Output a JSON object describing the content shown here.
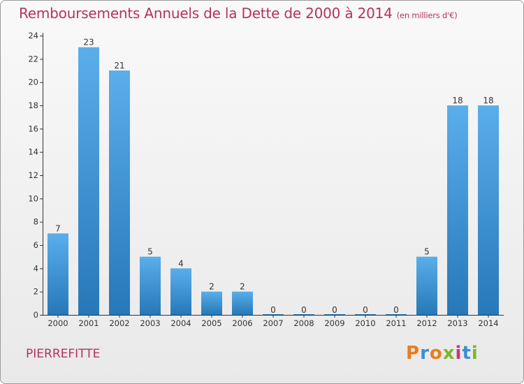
{
  "header": {
    "title": "Remboursements Annuels de la Dette de 2000 à 2014",
    "unit": "(en milliers d'€)"
  },
  "footer": {
    "commune": "PIERREFITTE",
    "logo_text": "Proxiti"
  },
  "colors": {
    "title": "#b5335a",
    "bar_light": "#5aaeea",
    "bar_dark": "#2678b8",
    "axis": "#333333",
    "logo": [
      "#e87d1e",
      "#3a8fd0",
      "#e87d1e",
      "#7cb72a",
      "#d62e7a",
      "#3a8fd0",
      "#7cb72a"
    ]
  },
  "chart_data": {
    "type": "bar",
    "title": "Remboursements Annuels de la Dette de 2000 à 2014",
    "xlabel": "",
    "ylabel": "",
    "categories": [
      "2000",
      "2001",
      "2002",
      "2003",
      "2004",
      "2005",
      "2006",
      "2007",
      "2008",
      "2009",
      "2010",
      "2011",
      "2012",
      "2013",
      "2014"
    ],
    "values": [
      7,
      23,
      21,
      5,
      4,
      2,
      2,
      0,
      0,
      0,
      0,
      0,
      5,
      18,
      18
    ],
    "ylim": [
      0,
      24
    ],
    "yticks": [
      0,
      2,
      4,
      6,
      8,
      10,
      12,
      14,
      16,
      18,
      20,
      22,
      24
    ],
    "grid": false,
    "legend": "none"
  }
}
